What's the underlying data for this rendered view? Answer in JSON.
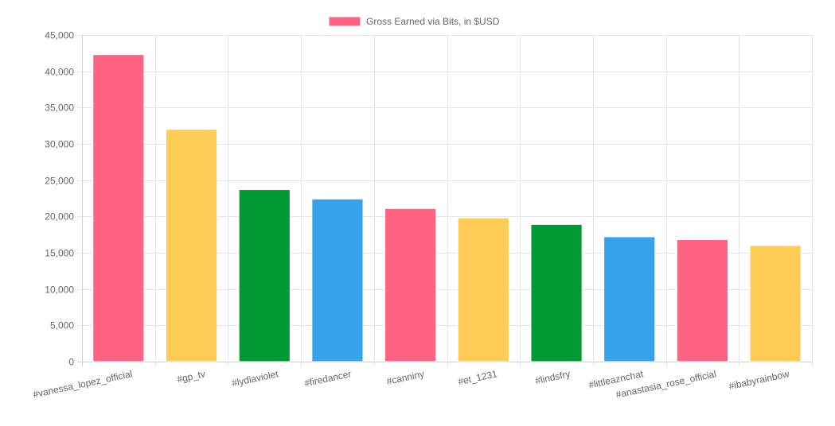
{
  "chart_data": {
    "type": "bar",
    "legend": {
      "label": "Gross Earned via Bits, in $USD",
      "color": "#ff6384",
      "position": "top"
    },
    "categories": [
      "#vanessa_lopez_official",
      "#gp_tv",
      "#lydiaviolet",
      "#firedancer",
      "#canniny",
      "#et_1231",
      "#lindsfry",
      "#littleaznchat",
      "#anastasia_rose_official",
      "#ibabyrainbow"
    ],
    "values": [
      42300,
      32000,
      23700,
      22400,
      21100,
      19800,
      18900,
      17200,
      16800,
      16000
    ],
    "bar_colors": [
      "#ff6384",
      "#ffcd56",
      "#009933",
      "#36a2eb",
      "#ff6384",
      "#ffcd56",
      "#009933",
      "#36a2eb",
      "#ff6384",
      "#ffcd56"
    ],
    "ylim": [
      0,
      45000
    ],
    "y_ticks": [
      0,
      5000,
      10000,
      15000,
      20000,
      25000,
      30000,
      35000,
      40000,
      45000
    ],
    "y_tick_labels": [
      "0",
      "5,000",
      "10,000",
      "15,000",
      "20,000",
      "25,000",
      "30,000",
      "35,000",
      "40,000",
      "45,000"
    ],
    "grid": true,
    "gridline_color": "#e5e5e5",
    "title": "",
    "xlabel": "",
    "ylabel": ""
  }
}
